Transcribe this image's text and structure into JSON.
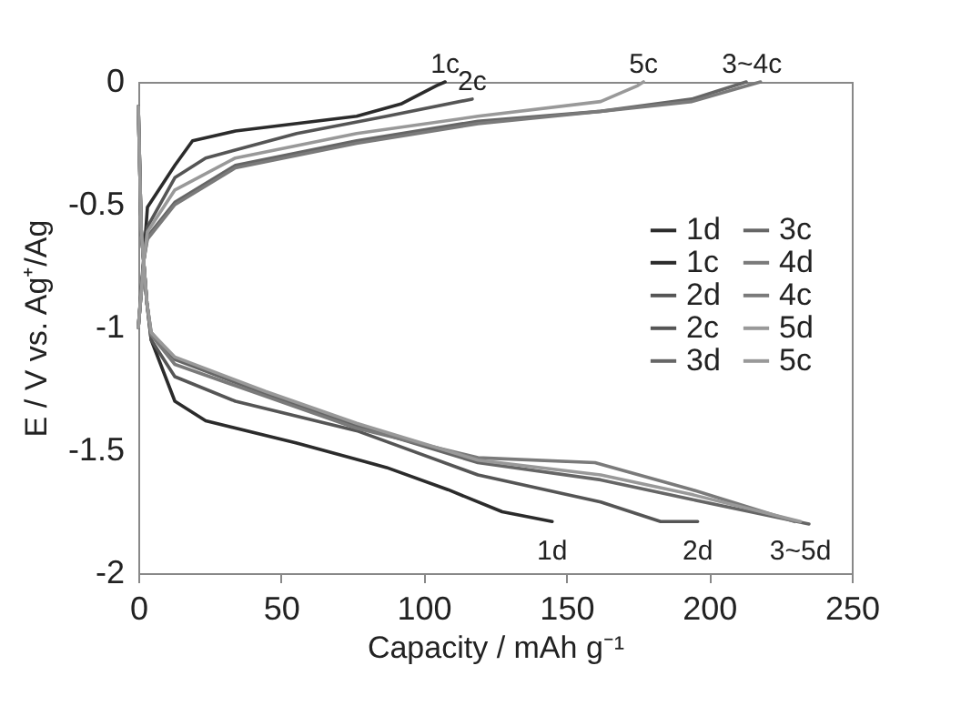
{
  "chart_data": {
    "type": "line",
    "xlabel": "Capacity / mAh g⁻¹",
    "ylabel": "E / V vs. Ag⁺/Ag",
    "xlim": [
      0,
      250
    ],
    "ylim": [
      -2,
      0
    ],
    "xticks": [
      0,
      50,
      100,
      150,
      200,
      250
    ],
    "yticks": [
      -2,
      -1.5,
      -1,
      -0.5,
      0
    ],
    "grid": false,
    "legend": "right",
    "line_style": "solid",
    "series": [
      {
        "name": "1d",
        "color": "#2b2b2b",
        "x": [
          0,
          1,
          3,
          4.5,
          12.8,
          23.6,
          55.5,
          87,
          108.5,
          127.5,
          145
        ],
        "values": [
          -0.1,
          -0.6,
          -0.9,
          -1.05,
          -1.3,
          -1.38,
          -1.47,
          -1.57,
          -1.66,
          -1.75,
          -1.79
        ]
      },
      {
        "name": "1c",
        "color": "#2b2b2b",
        "x": [
          0,
          2,
          3.2,
          12.8,
          19,
          34,
          76.5,
          92,
          104.5,
          107.5
        ],
        "values": [
          -1,
          -0.7,
          -0.51,
          -0.34,
          -0.24,
          -0.2,
          -0.14,
          -0.09,
          -0.015,
          0
        ]
      },
      {
        "name": "2d",
        "color": "#555555",
        "x": [
          0,
          1,
          3,
          4.5,
          12.8,
          34,
          76.5,
          119,
          162,
          183,
          196
        ],
        "values": [
          -0.1,
          -0.6,
          -0.9,
          -1.05,
          -1.2,
          -1.3,
          -1.42,
          -1.6,
          -1.71,
          -1.79,
          -1.79
        ]
      },
      {
        "name": "2c",
        "color": "#555555",
        "x": [
          0,
          2,
          3.2,
          12.8,
          23.6,
          55.5,
          87,
          117
        ],
        "values": [
          -1,
          -0.72,
          -0.59,
          -0.39,
          -0.31,
          -0.21,
          -0.14,
          -0.07
        ]
      },
      {
        "name": "3d",
        "color": "#666666",
        "x": [
          0,
          1,
          3,
          4.5,
          12.8,
          44.6,
          76.5,
          119,
          162,
          194,
          235
        ],
        "values": [
          -0.1,
          -0.6,
          -0.9,
          -1.02,
          -1.13,
          -1.27,
          -1.4,
          -1.55,
          -1.62,
          -1.7,
          -1.8
        ]
      },
      {
        "name": "3c",
        "color": "#666666",
        "x": [
          0,
          2,
          3.2,
          12.8,
          34,
          76.5,
          119,
          162,
          194,
          213
        ],
        "values": [
          -1,
          -0.72,
          -0.63,
          -0.49,
          -0.34,
          -0.24,
          -0.16,
          -0.12,
          -0.07,
          0
        ]
      },
      {
        "name": "4d",
        "color": "#7a7a7a",
        "x": [
          0,
          1,
          3,
          4.5,
          12.8,
          44.6,
          76.5,
          119,
          160,
          194,
          230
        ],
        "values": [
          -0.1,
          -0.6,
          -0.9,
          -1.03,
          -1.15,
          -1.28,
          -1.41,
          -1.53,
          -1.55,
          -1.66,
          -1.79
        ]
      },
      {
        "name": "4c",
        "color": "#7a7a7a",
        "x": [
          0,
          2,
          3.2,
          12.8,
          34,
          76.5,
          119,
          162,
          194,
          218
        ],
        "values": [
          -1,
          -0.72,
          -0.64,
          -0.5,
          -0.35,
          -0.25,
          -0.17,
          -0.12,
          -0.08,
          0
        ]
      },
      {
        "name": "5d",
        "color": "#999999",
        "x": [
          0,
          1,
          3,
          4.5,
          12.8,
          44.6,
          76.5,
          119,
          162,
          194,
          232
        ],
        "values": [
          -0.1,
          -0.6,
          -0.9,
          -1.02,
          -1.12,
          -1.26,
          -1.39,
          -1.54,
          -1.6,
          -1.68,
          -1.79
        ]
      },
      {
        "name": "5c",
        "color": "#999999",
        "x": [
          0,
          2,
          3.2,
          12.8,
          34,
          76.5,
          119,
          162,
          175,
          177
        ],
        "values": [
          -1,
          -0.72,
          -0.61,
          -0.44,
          -0.31,
          -0.21,
          -0.14,
          -0.08,
          -0.015,
          0
        ]
      }
    ],
    "annotations": [
      {
        "text": "1c",
        "x": 107.5,
        "y": 0
      },
      {
        "text": "2c",
        "x": 117,
        "y": -0.07
      },
      {
        "text": "5c",
        "x": 177,
        "y": 0
      },
      {
        "text": "3~4c",
        "x": 215,
        "y": 0
      },
      {
        "text": "1d",
        "x": 145,
        "y": -1.79
      },
      {
        "text": "2d",
        "x": 196,
        "y": -1.79
      },
      {
        "text": "3~5d",
        "x": 232,
        "y": -1.79
      }
    ]
  }
}
